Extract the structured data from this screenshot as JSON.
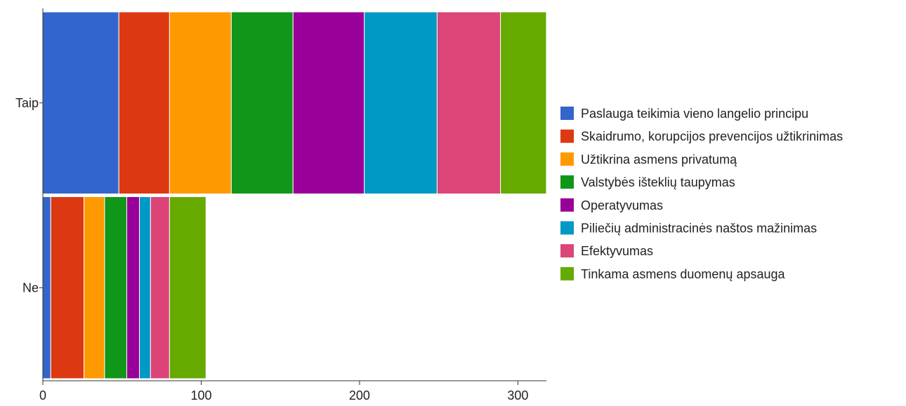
{
  "chart_data": {
    "type": "bar",
    "orientation": "horizontal",
    "stacked": true,
    "categories": [
      "Taip",
      "Ne"
    ],
    "xlim": [
      0,
      318
    ],
    "xticks": [
      0,
      100,
      200,
      300
    ],
    "grid": false,
    "legend_position": "right",
    "series": [
      {
        "name": "Paslauga teikimia vieno langelio principu",
        "color": "#3366cc",
        "values": [
          48,
          5
        ]
      },
      {
        "name": "Skaidrumo, korupcijos prevencijos užtikrinimas",
        "color": "#dc3912",
        "values": [
          32,
          21
        ]
      },
      {
        "name": "Užtikrina asmens privatumą",
        "color": "#ff9900",
        "values": [
          39,
          13
        ]
      },
      {
        "name": "Valstybės išteklių taupymas",
        "color": "#109618",
        "values": [
          39,
          14
        ]
      },
      {
        "name": "Operatyvumas",
        "color": "#990099",
        "values": [
          45,
          8
        ]
      },
      {
        "name": "Piliečių administracinės naštos mažinimas",
        "color": "#0099c6",
        "values": [
          46,
          7
        ]
      },
      {
        "name": "Efektyvumas",
        "color": "#dd4477",
        "values": [
          40,
          12
        ]
      },
      {
        "name": "Tinkama asmens duomenų apsauga",
        "color": "#66aa00",
        "values": [
          29,
          23
        ]
      }
    ]
  }
}
